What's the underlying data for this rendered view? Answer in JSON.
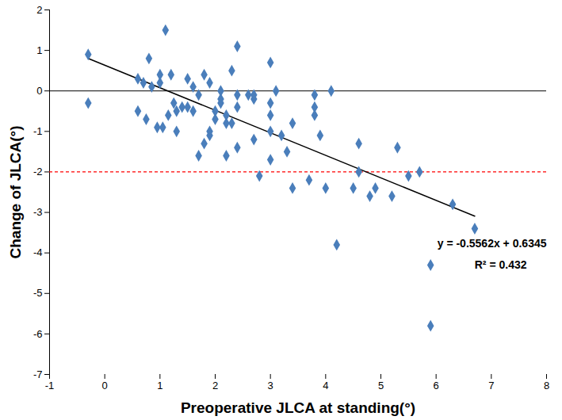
{
  "chart_data": {
    "type": "scatter",
    "x_label": "Preoperative JLCA at standing(°)",
    "y_label": "Change of JLCA(°)",
    "color": "#4a7ebb",
    "marker": "diamond",
    "x": [
      -0.3,
      -0.3,
      0.6,
      0.6,
      0.7,
      0.75,
      0.8,
      0.85,
      0.95,
      1.0,
      1.0,
      1.05,
      1.1,
      1.15,
      1.2,
      1.25,
      1.3,
      1.3,
      1.4,
      1.5,
      1.5,
      1.6,
      1.6,
      1.7,
      1.7,
      1.8,
      1.8,
      1.9,
      1.9,
      1.9,
      2.0,
      2.0,
      2.1,
      2.1,
      2.1,
      2.2,
      2.2,
      2.2,
      2.3,
      2.3,
      2.4,
      2.4,
      2.4,
      2.4,
      2.6,
      2.7,
      2.7,
      2.7,
      2.8,
      3.0,
      3.0,
      3.0,
      3.0,
      3.0,
      3.1,
      3.2,
      3.3,
      3.4,
      3.4,
      3.7,
      3.8,
      3.8,
      3.8,
      3.9,
      4.0,
      4.1,
      4.2,
      4.5,
      4.6,
      4.6,
      4.8,
      4.9,
      5.2,
      5.3,
      5.5,
      5.7,
      5.9,
      5.9,
      6.3,
      6.7
    ],
    "values": [
      0.9,
      -0.3,
      0.3,
      -0.5,
      0.2,
      -0.7,
      0.8,
      0.1,
      -0.9,
      0.4,
      0.2,
      -0.9,
      1.5,
      -0.6,
      0.4,
      -0.3,
      -0.5,
      -1.0,
      -0.4,
      -0.4,
      0.3,
      0.1,
      -0.5,
      -0.1,
      -1.6,
      0.4,
      -1.3,
      0.2,
      -1.0,
      -1.1,
      -0.7,
      -0.5,
      -0.2,
      0.0,
      -0.3,
      -0.6,
      -1.6,
      -0.8,
      0.5,
      -0.8,
      1.1,
      -0.4,
      -0.1,
      -1.4,
      -0.1,
      -0.2,
      -0.1,
      -1.2,
      -2.1,
      0.7,
      -0.3,
      -0.6,
      -1.0,
      -1.7,
      0.0,
      -1.1,
      -1.5,
      -0.8,
      -2.4,
      -2.2,
      -0.1,
      -0.4,
      -0.6,
      -1.1,
      -2.4,
      0.0,
      -3.8,
      -2.4,
      -1.3,
      -2.0,
      -2.6,
      -2.4,
      -2.6,
      -1.4,
      -2.1,
      -2.0,
      -4.3,
      -5.8,
      -2.8,
      -3.4
    ],
    "trendline": {
      "slope": -0.5562,
      "intercept": 0.6345,
      "x": [
        -0.3,
        6.7
      ],
      "color": "#000000"
    },
    "reference_line": {
      "y": -2,
      "color": "#ff0000",
      "line_style": "dashed"
    },
    "annotations": [
      "y = -0.5562x + 0.6345",
      "R² = 0.432"
    ],
    "xlim": [
      -1,
      8
    ],
    "xticks": [
      -1,
      0,
      1,
      2,
      3,
      4,
      5,
      6,
      7,
      8
    ],
    "ylim": [
      -7,
      2
    ],
    "yticks": [
      -7,
      -6,
      -5,
      -4,
      -3,
      -2,
      -1,
      0,
      1,
      2
    ],
    "grid": false
  }
}
